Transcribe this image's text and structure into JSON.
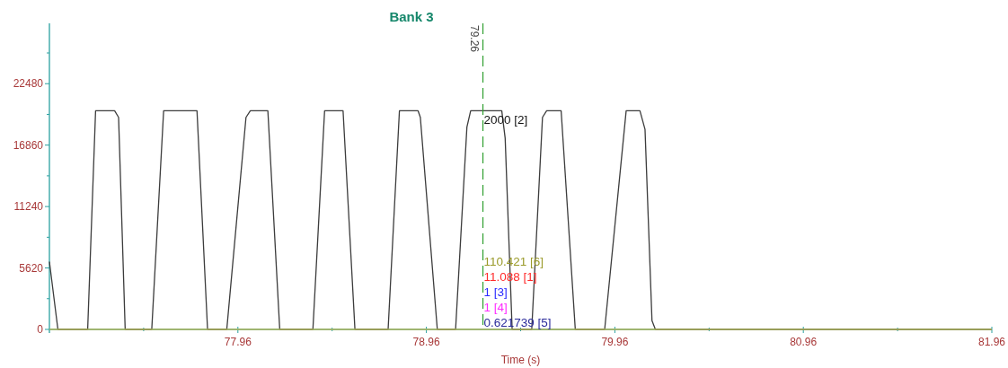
{
  "chart_data": {
    "type": "line",
    "title": "Bank 3",
    "xlabel": "Time (s)",
    "xlim": [
      76.96,
      81.96
    ],
    "xticks": [
      {
        "value": 77.46,
        "label": null
      },
      77.96,
      {
        "value": 78.46,
        "label": null
      },
      78.96,
      {
        "value": 79.46,
        "label": null
      },
      79.96,
      {
        "value": 80.46,
        "label": null
      },
      80.96,
      {
        "value": 81.46,
        "label": null
      },
      81.96
    ],
    "ylim": [
      0,
      28000
    ],
    "yticks": [
      0,
      {
        "value": 2810,
        "label": null
      },
      5620,
      {
        "value": 8430,
        "label": null
      },
      11240,
      {
        "value": 14050,
        "label": null
      },
      16860,
      {
        "value": 19670,
        "label": null
      },
      22480,
      {
        "value": 25290,
        "label": null
      }
    ],
    "series": [
      {
        "color": "#3c3c3c",
        "x": [
          76.96,
          77.005,
          77.163,
          77.205,
          77.306,
          77.327,
          77.362,
          77.503,
          77.566,
          77.743,
          77.799,
          77.901,
          78.003,
          78.026,
          78.119,
          78.182,
          78.358,
          78.42,
          78.518,
          78.581,
          78.757,
          78.817,
          78.916,
          78.928,
          79.018,
          79.115,
          79.175,
          79.195,
          79.36,
          79.378,
          79.415,
          79.519,
          79.576,
          79.598,
          79.675,
          79.75,
          79.906,
          80.02,
          80.093,
          80.12,
          80.157,
          80.175,
          81.96
        ],
        "values": [
          6200,
          0,
          0,
          20000,
          20000,
          19400,
          0,
          0,
          20000,
          20000,
          0,
          0,
          19400,
          20000,
          20000,
          0,
          0,
          20000,
          20000,
          0,
          0,
          20000,
          20000,
          19400,
          0,
          0,
          18500,
          20000,
          20000,
          17500,
          0,
          0,
          19400,
          20000,
          20000,
          0,
          0,
          20000,
          20000,
          18300,
          800,
          0,
          0
        ]
      },
      {
        "color": "#b4b45a",
        "x": [
          76.96,
          81.96
        ],
        "values": [
          0,
          0
        ]
      }
    ],
    "ref_lines": [
      {
        "axis": "x",
        "value": 79.26,
        "label": "79.26",
        "color": "#2e9e2e",
        "line_style": "dashed"
      }
    ],
    "annotations": [
      {
        "text": "2000 [2]",
        "x": 79.26,
        "y": 20000
      },
      "110.421 [6]",
      "11.088 [1]",
      "1 [3]",
      "1 [4]",
      "0.621739 [5]"
    ]
  }
}
